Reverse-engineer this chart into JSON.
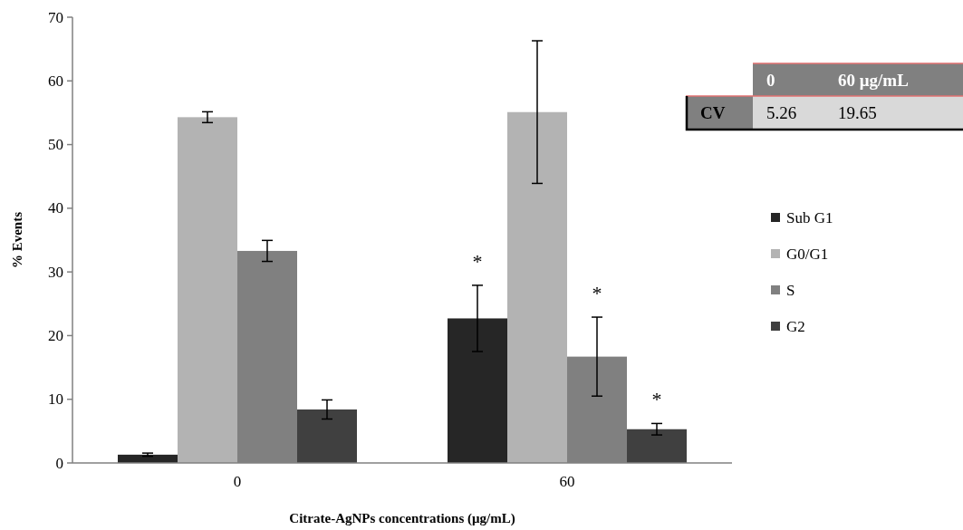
{
  "chart_data": [
    {
      "type": "bar",
      "xlabel": "Citrate-AgNPs concentrations (μg/mL)",
      "ylabel": "% Events",
      "categories": [
        "0",
        "60"
      ],
      "ylim": [
        0,
        70
      ],
      "yticks": [
        0,
        10,
        20,
        30,
        40,
        50,
        60,
        70
      ],
      "grid": false,
      "legend": "right",
      "series": [
        {
          "name": "Sub G1",
          "color": "#262626",
          "values": [
            1.3,
            22.7
          ],
          "errors": [
            0.25,
            5.2
          ],
          "value_labels": [
            null,
            "*"
          ]
        },
        {
          "name": "G0/G1",
          "color": "#b3b3b3",
          "values": [
            54.3,
            55.1
          ],
          "errors": [
            0.85,
            11.2
          ]
        },
        {
          "name": "S",
          "color": "#808080",
          "values": [
            33.3,
            16.7
          ],
          "errors": [
            1.65,
            6.2
          ],
          "value_labels": [
            null,
            "*"
          ]
        },
        {
          "name": "G2",
          "color": "#404040",
          "values": [
            8.4,
            5.3
          ],
          "errors": [
            1.5,
            0.9
          ],
          "value_labels": [
            null,
            "*"
          ]
        }
      ]
    },
    {
      "type": "other",
      "categories": [
        "0",
        "60  μg/mL"
      ],
      "ylabel": "CV",
      "values": [
        5.26,
        19.65
      ],
      "data_labels": true
    }
  ]
}
